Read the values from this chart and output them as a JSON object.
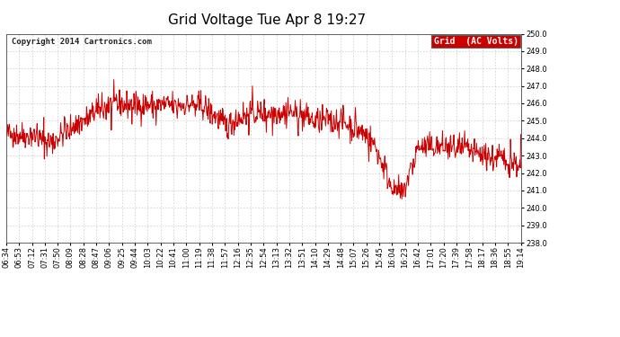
{
  "title": "Grid Voltage Tue Apr 8 19:27",
  "copyright": "Copyright 2014 Cartronics.com",
  "legend_label": "Grid  (AC Volts)",
  "legend_bg": "#cc0000",
  "legend_fg": "#ffffff",
  "line_color": "#cc0000",
  "bg_color": "#ffffff",
  "grid_color": "#bbbbbb",
  "axis_bg": "#ffffff",
  "ylim": [
    238.0,
    250.0
  ],
  "yticks": [
    238.0,
    239.0,
    240.0,
    241.0,
    242.0,
    243.0,
    244.0,
    245.0,
    246.0,
    247.0,
    248.0,
    249.0,
    250.0
  ],
  "xtick_labels": [
    "06:34",
    "06:53",
    "07:12",
    "07:31",
    "07:50",
    "08:09",
    "08:28",
    "08:47",
    "09:06",
    "09:25",
    "09:44",
    "10:03",
    "10:22",
    "10:41",
    "11:00",
    "11:19",
    "11:38",
    "11:57",
    "12:16",
    "12:35",
    "12:54",
    "13:13",
    "13:32",
    "13:51",
    "14:10",
    "14:29",
    "14:48",
    "15:07",
    "15:26",
    "15:45",
    "16:04",
    "16:23",
    "16:42",
    "17:01",
    "17:20",
    "17:39",
    "17:58",
    "18:17",
    "18:36",
    "18:55",
    "19:14"
  ],
  "title_fontsize": 11,
  "copyright_fontsize": 6.5,
  "tick_fontsize": 6,
  "legend_fontsize": 7
}
